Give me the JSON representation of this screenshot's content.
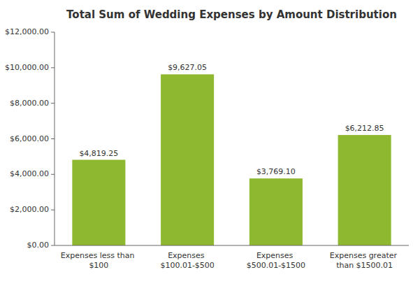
{
  "chart_data": {
    "type": "bar",
    "title": "Total Sum of Wedding Expenses by Amount Distribution",
    "categories": [
      "Expenses less than $100",
      "Expenses $100.01-$500",
      "Expenses $500.01-$1500",
      "Expenses greater than $1500.01"
    ],
    "values": [
      4819.25,
      9627.05,
      3769.1,
      6212.85
    ],
    "value_labels": [
      "$4,819.25",
      "$9,627.05",
      "$3,769.10",
      "$6,212.85"
    ],
    "data_labels": true,
    "color": "#8db830",
    "ylim": [
      0,
      12000
    ],
    "yticks": [
      {
        "value": 0,
        "label": "$0.00"
      },
      {
        "value": 2000,
        "label": "$2,000.00"
      },
      {
        "value": 4000,
        "label": "$4,000.00"
      },
      {
        "value": 6000,
        "label": "$6,000.00"
      },
      {
        "value": 8000,
        "label": "$8,000.00"
      },
      {
        "value": 10000,
        "label": "$10,000.00"
      },
      {
        "value": 12000,
        "label": "$12,000.00"
      }
    ],
    "grid": false
  }
}
